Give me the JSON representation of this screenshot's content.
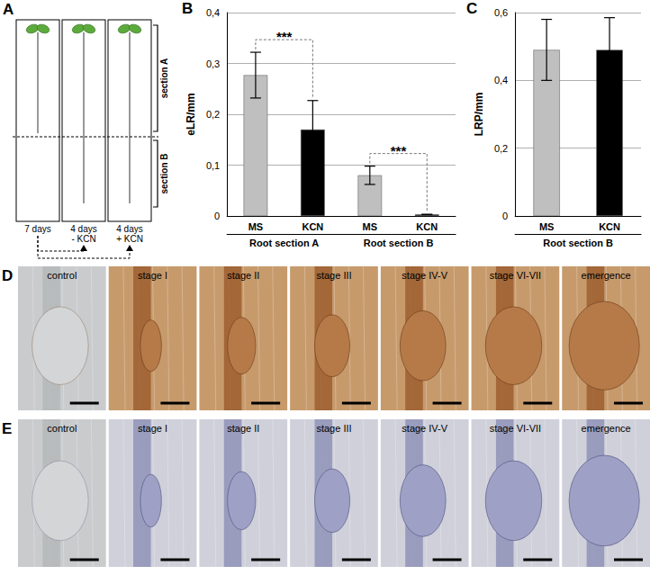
{
  "panels": {
    "A": {
      "panel": "A",
      "columns": [
        {
          "label": "7 days",
          "treatment": null
        },
        {
          "label": "4 days",
          "treatment": "- KCN"
        },
        {
          "label": "4 days",
          "treatment": "+ KCN"
        }
      ],
      "sections": [
        "section A",
        "section B"
      ]
    },
    "D": {
      "panel": "D",
      "labels": [
        "control",
        "stage I",
        "stage II",
        "stage III",
        "stage IV-V",
        "stage VI-VII",
        "emergence"
      ]
    },
    "E": {
      "panel": "E",
      "labels": [
        "control",
        "stage I",
        "stage II",
        "stage III",
        "stage IV-V",
        "stage VI-VII",
        "emergence"
      ]
    }
  },
  "chart_data": [
    {
      "panel": "B",
      "type": "bar",
      "y_label": "eLR/mm",
      "categories": [
        "MS",
        "KCN",
        "MS",
        "KCN"
      ],
      "groups": [
        "Root section A",
        "Root section B"
      ],
      "values": [
        0.277,
        0.17,
        0.08,
        0.003
      ],
      "errors": [
        0.045,
        0.057,
        0.018,
        0
      ],
      "colors": [
        "#bfbfbf",
        "#000000",
        "#bfbfbf",
        "#000000"
      ],
      "ylim": [
        0,
        0.4
      ],
      "yticks": [
        0,
        {
          "value": 0.1,
          "label": "0,1"
        },
        {
          "value": 0.2,
          "label": "0,2"
        },
        {
          "value": 0.3,
          "label": "0,3"
        },
        {
          "value": 0.4,
          "label": "0,4"
        }
      ],
      "grid": true,
      "annotations": [
        {
          "text": "***",
          "categories": [
            0,
            1
          ]
        },
        {
          "text": "***",
          "categories": [
            2,
            3
          ]
        }
      ]
    },
    {
      "panel": "C",
      "type": "bar",
      "y_label": "LRP/mm",
      "categories": [
        "MS",
        "KCN"
      ],
      "groups": [
        "Root section B"
      ],
      "values": [
        0.49,
        0.49
      ],
      "errors": [
        0.09,
        0.095
      ],
      "colors": [
        "#bfbfbf",
        "#000000"
      ],
      "ylim": [
        0,
        0.6
      ],
      "yticks": [
        0,
        {
          "value": 0.2,
          "label": "0,2"
        },
        {
          "value": 0.4,
          "label": "0,4"
        },
        {
          "value": 0.6,
          "label": "0,6"
        }
      ],
      "grid": true,
      "annotations": []
    }
  ]
}
